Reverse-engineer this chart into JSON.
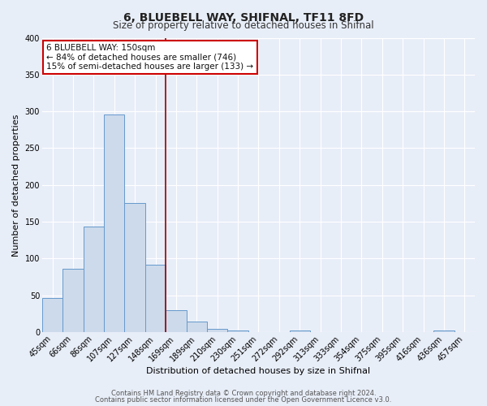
{
  "title": "6, BLUEBELL WAY, SHIFNAL, TF11 8FD",
  "subtitle": "Size of property relative to detached houses in Shifnal",
  "xlabel": "Distribution of detached houses by size in Shifnal",
  "ylabel": "Number of detached properties",
  "bin_labels": [
    "45sqm",
    "66sqm",
    "86sqm",
    "107sqm",
    "127sqm",
    "148sqm",
    "169sqm",
    "189sqm",
    "210sqm",
    "230sqm",
    "251sqm",
    "272sqm",
    "292sqm",
    "313sqm",
    "333sqm",
    "354sqm",
    "375sqm",
    "395sqm",
    "416sqm",
    "436sqm",
    "457sqm"
  ],
  "bar_values": [
    47,
    86,
    144,
    296,
    175,
    92,
    30,
    14,
    5,
    2,
    0,
    0,
    2,
    0,
    0,
    0,
    0,
    0,
    0,
    2,
    0
  ],
  "bar_color": "#ccdaeb",
  "bar_edge_color": "#6699cc",
  "vline_x": 5.5,
  "vline_color": "#990000",
  "ylim": [
    0,
    400
  ],
  "yticks": [
    0,
    50,
    100,
    150,
    200,
    250,
    300,
    350,
    400
  ],
  "annotation_title": "6 BLUEBELL WAY: 150sqm",
  "annotation_line1": "← 84% of detached houses are smaller (746)",
  "annotation_line2": "15% of semi-detached houses are larger (133) →",
  "annotation_box_facecolor": "#ffffff",
  "annotation_box_edgecolor": "#cc0000",
  "footer1": "Contains HM Land Registry data © Crown copyright and database right 2024.",
  "footer2": "Contains public sector information licensed under the Open Government Licence v3.0.",
  "bg_color": "#e8eef8",
  "plot_bg_color": "#e8eef8",
  "grid_color": "#ffffff",
  "title_fontsize": 10,
  "subtitle_fontsize": 8.5,
  "ylabel_fontsize": 8,
  "xlabel_fontsize": 8,
  "tick_fontsize": 7,
  "annotation_fontsize": 7.5,
  "footer_fontsize": 6
}
